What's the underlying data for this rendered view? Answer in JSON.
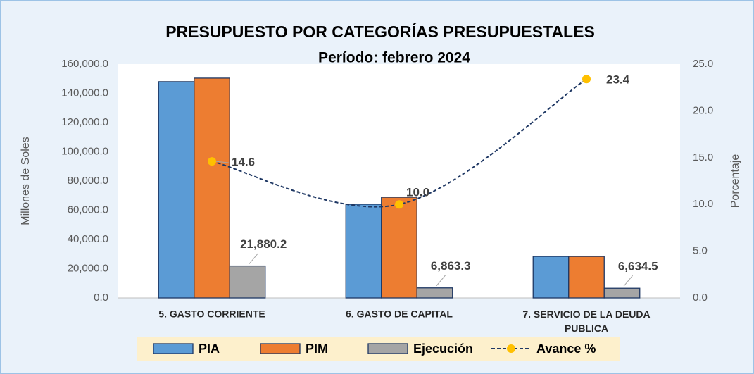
{
  "chart_data": {
    "type": "bar-line",
    "title": "PRESUPUESTO  POR CATEGORÍAS PRESUPUESTALES",
    "subtitle": "Período: febrero 2024",
    "y_label": "Millones de Soles",
    "y2_label": "Porcentaje",
    "categories": [
      "5. GASTO CORRIENTE",
      "6. GASTO DE CAPITAL",
      "7. SERVICIO DE LA DEUDA PUBLICA"
    ],
    "series": [
      {
        "name": "PIA",
        "type": "bar",
        "color": "#5b9bd5",
        "values": [
          148000,
          64100,
          28400
        ]
      },
      {
        "name": "PIM",
        "type": "bar",
        "color": "#ed7d31",
        "values": [
          150400,
          68900,
          28400
        ]
      },
      {
        "name": "Ejecución",
        "type": "bar",
        "color": "#a5a5a5",
        "values": [
          21880.2,
          6863.3,
          6634.5
        ],
        "value_labels": [
          "21,880.2",
          "6,863.3",
          "6,634.5"
        ]
      },
      {
        "name": "Avance %",
        "type": "line",
        "axis": "y2",
        "color": "#1f3864",
        "marker_color": "#ffc000",
        "values": [
          14.6,
          10.0,
          23.4
        ],
        "value_labels": [
          "14.6",
          "10.0",
          "23.4"
        ]
      }
    ],
    "ylim": [
      0,
      160000
    ],
    "yticks": [
      {
        "value": 0,
        "label": "0.0"
      },
      {
        "value": 20000,
        "label": "20,000.0"
      },
      {
        "value": 40000,
        "label": "40,000.0"
      },
      {
        "value": 60000,
        "label": "60,000.0"
      },
      {
        "value": 80000,
        "label": "80,000.0"
      },
      {
        "value": 100000,
        "label": "100,000.0"
      },
      {
        "value": 120000,
        "label": "120,000.0"
      },
      {
        "value": 140000,
        "label": "140,000.0"
      },
      {
        "value": 160000,
        "label": "160,000.0"
      }
    ],
    "y2lim": [
      0,
      25
    ],
    "y2ticks": [
      {
        "value": 0,
        "label": "0.0"
      },
      {
        "value": 5,
        "label": "5.0"
      },
      {
        "value": 10,
        "label": "10.0"
      },
      {
        "value": 15,
        "label": "15.0"
      },
      {
        "value": 20,
        "label": "20.0"
      },
      {
        "value": 25,
        "label": "25.0"
      }
    ],
    "legend": "bottom"
  }
}
